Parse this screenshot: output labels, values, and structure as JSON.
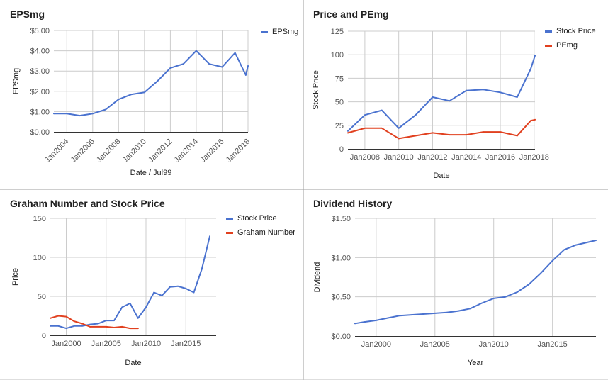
{
  "colors": {
    "blue": "#4a72cf",
    "red": "#e1401f",
    "grid": "#cccccc",
    "axis": "#333333",
    "text": "#555555"
  },
  "chart_data": [
    {
      "title": "EPSmg",
      "type": "line",
      "xlabel": "Date / Jul99",
      "ylabel": "EPSmg",
      "xlim": [
        2003,
        2018
      ],
      "ylim": [
        0,
        5
      ],
      "x_ticks": [
        2004,
        2006,
        2008,
        2010,
        2012,
        2014,
        2016,
        2018
      ],
      "x_tick_labels": [
        "Jan2004",
        "Jan2006",
        "Jan2008",
        "Jan2010",
        "Jan2012",
        "Jan2014",
        "Jan2016",
        "Jan2018"
      ],
      "x_tick_rotate": true,
      "y_ticks": [
        0,
        1,
        2,
        3,
        4,
        5
      ],
      "y_tick_labels": [
        "$0.00",
        "$1.00",
        "$2.00",
        "$3.00",
        "$4.00",
        "$5.00"
      ],
      "legend": "top-right",
      "series": [
        {
          "name": "EPSmg",
          "color": "#4a72cf",
          "x": [
            2003,
            2004,
            2005,
            2006,
            2007,
            2008,
            2009,
            2010,
            2011,
            2012,
            2013,
            2014,
            2015,
            2016,
            2017,
            2017.83,
            2018
          ],
          "values": [
            0.9,
            0.9,
            0.8,
            0.9,
            1.1,
            1.6,
            1.85,
            1.95,
            2.5,
            3.15,
            3.35,
            4.0,
            3.35,
            3.2,
            3.9,
            2.8,
            3.25
          ]
        }
      ]
    },
    {
      "title": "Price and PEmg",
      "type": "line",
      "xlabel": "Date",
      "ylabel": "Stock Price",
      "xlim": [
        2007,
        2018.05
      ],
      "ylim": [
        0,
        125
      ],
      "x_ticks": [
        2008,
        2010,
        2012,
        2014,
        2016,
        2018
      ],
      "x_tick_labels": [
        "Jan2008",
        "Jan2010",
        "Jan2012",
        "Jan2014",
        "Jan2016",
        "Jan2018"
      ],
      "x_tick_rotate": false,
      "y_ticks": [
        0,
        25,
        50,
        75,
        100,
        125
      ],
      "y_tick_labels": [
        "0",
        "25",
        "50",
        "75",
        "100",
        "125"
      ],
      "legend": "top-right",
      "series": [
        {
          "name": "Stock Price",
          "color": "#4a72cf",
          "x": [
            2007,
            2008,
            2009,
            2010,
            2011,
            2012,
            2013,
            2014,
            2015,
            2016,
            2017,
            2017.8,
            2018.05
          ],
          "values": [
            19,
            36,
            41,
            22,
            36,
            55,
            51,
            62,
            63,
            60,
            55,
            85,
            99
          ]
        },
        {
          "name": "PEmg",
          "color": "#e1401f",
          "x": [
            2007,
            2008,
            2009,
            2010,
            2011,
            2012,
            2013,
            2014,
            2015,
            2016,
            2017,
            2017.8,
            2018.05
          ],
          "values": [
            17,
            22,
            22,
            11,
            14,
            17,
            15,
            15,
            18,
            18,
            14,
            30,
            31
          ]
        }
      ]
    },
    {
      "title": "Graham Number and Stock Price",
      "type": "line",
      "xlabel": "Date",
      "ylabel": "Price",
      "xlim": [
        1998,
        2018.8
      ],
      "ylim": [
        0,
        150
      ],
      "x_ticks": [
        2000,
        2005,
        2010,
        2015
      ],
      "x_tick_labels": [
        "Jan2000",
        "Jan2005",
        "Jan2010",
        "Jan2015"
      ],
      "x_tick_rotate": false,
      "y_ticks": [
        0,
        50,
        100,
        150
      ],
      "y_tick_labels": [
        "0",
        "50",
        "100",
        "150"
      ],
      "legend": "top-right",
      "series": [
        {
          "name": "Stock Price",
          "color": "#4a72cf",
          "x": [
            1998,
            1999,
            2000,
            2001,
            2002,
            2003,
            2004,
            2005,
            2006,
            2007,
            2008,
            2009,
            2010,
            2011,
            2012,
            2013,
            2014,
            2015,
            2016,
            2017,
            2018
          ],
          "values": [
            12,
            12,
            9,
            12,
            12,
            14,
            15,
            19,
            19,
            36,
            41,
            22,
            36,
            55,
            51,
            62,
            63,
            60,
            55,
            85,
            127
          ]
        },
        {
          "name": "Graham Number",
          "color": "#e1401f",
          "x": [
            1998,
            1999,
            2000,
            2001,
            2002,
            2003,
            2004,
            2005,
            2006,
            2007,
            2008,
            2009
          ],
          "values": [
            22,
            25,
            24,
            18,
            15,
            11,
            11,
            11,
            10,
            11,
            9,
            9
          ]
        }
      ]
    },
    {
      "title": "Dividend History",
      "type": "line",
      "xlabel": "Year",
      "ylabel": "Dividend",
      "xlim": [
        1998.2,
        2018.7
      ],
      "ylim": [
        0,
        1.5
      ],
      "x_ticks": [
        2000,
        2005,
        2010,
        2015
      ],
      "x_tick_labels": [
        "Jan2000",
        "Jan2005",
        "Jan2010",
        "Jan2015"
      ],
      "x_tick_rotate": false,
      "y_ticks": [
        0,
        0.5,
        1,
        1.5
      ],
      "y_tick_labels": [
        "$0.00",
        "$0.50",
        "$1.00",
        "$1.50"
      ],
      "legend": "none",
      "series": [
        {
          "name": "",
          "color": "#4a72cf",
          "x": [
            1998.2,
            1999,
            2000,
            2001,
            2002,
            2003,
            2004,
            2005,
            2006,
            2007,
            2008,
            2009,
            2010,
            2011,
            2012,
            2013,
            2014,
            2015,
            2016,
            2017,
            2018.7
          ],
          "values": [
            0.16,
            0.18,
            0.2,
            0.23,
            0.26,
            0.27,
            0.28,
            0.29,
            0.3,
            0.32,
            0.35,
            0.42,
            0.48,
            0.5,
            0.56,
            0.66,
            0.8,
            0.96,
            1.1,
            1.16,
            1.22
          ]
        }
      ]
    }
  ]
}
